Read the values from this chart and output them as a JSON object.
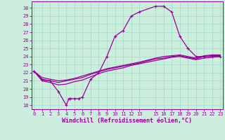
{
  "xlabel": "Windchill (Refroidissement éolien,°C)",
  "background_color": "#cceedd",
  "grid_color": "#aaddcc",
  "line_color": "#990099",
  "x_ticks": [
    0,
    1,
    2,
    3,
    4,
    5,
    6,
    7,
    8,
    9,
    10,
    11,
    12,
    13,
    15,
    16,
    17,
    18,
    19,
    20,
    21,
    22,
    23
  ],
  "y_ticks": [
    18,
    19,
    20,
    21,
    22,
    23,
    24,
    25,
    26,
    27,
    28,
    29,
    30
  ],
  "xlim": [
    -0.3,
    23.3
  ],
  "ylim": [
    17.5,
    30.8
  ],
  "line1_x": [
    0,
    1,
    2,
    3,
    4,
    4.3,
    4.5,
    5,
    5.5,
    6,
    7,
    8,
    9,
    10,
    11,
    12,
    13,
    15,
    16,
    17,
    18,
    19,
    20,
    21,
    22,
    23
  ],
  "line1_y": [
    22.2,
    21.1,
    21.0,
    19.7,
    18.0,
    18.8,
    18.8,
    18.8,
    18.8,
    19.0,
    21.2,
    22.0,
    24.0,
    26.5,
    27.2,
    29.0,
    29.5,
    30.2,
    30.2,
    29.5,
    26.5,
    25.0,
    24.0,
    24.0,
    24.0,
    24.0
  ],
  "line2_x": [
    0,
    1,
    2,
    3,
    4,
    5,
    6,
    7,
    8,
    9,
    10,
    11,
    12,
    13,
    15,
    16,
    17,
    18,
    19,
    20,
    21,
    22,
    23
  ],
  "line2_y": [
    22.2,
    21.2,
    21.0,
    20.8,
    21.0,
    21.2,
    21.4,
    21.8,
    22.1,
    22.4,
    22.6,
    22.8,
    23.0,
    23.2,
    23.7,
    23.8,
    24.0,
    24.1,
    23.9,
    23.7,
    24.0,
    24.1,
    24.1
  ],
  "line3_x": [
    0,
    1,
    2,
    3,
    4,
    5,
    6,
    7,
    8,
    9,
    10,
    11,
    12,
    13,
    15,
    16,
    17,
    18,
    19,
    20,
    21,
    22,
    23
  ],
  "line3_y": [
    22.2,
    21.4,
    21.2,
    21.0,
    21.1,
    21.3,
    21.6,
    21.9,
    22.2,
    22.5,
    22.7,
    22.9,
    23.1,
    23.3,
    23.8,
    24.0,
    24.1,
    24.2,
    24.0,
    23.8,
    24.1,
    24.2,
    24.2
  ],
  "line4_x": [
    0,
    1,
    2,
    3,
    4,
    5,
    6,
    7,
    8,
    9,
    10,
    11,
    12,
    13,
    15,
    16,
    17,
    18,
    19,
    20,
    21,
    22,
    23
  ],
  "line4_y": [
    22.2,
    21.0,
    20.8,
    20.5,
    20.6,
    20.9,
    21.1,
    21.5,
    21.9,
    22.2,
    22.4,
    22.6,
    22.9,
    23.1,
    23.5,
    23.7,
    23.9,
    24.0,
    23.8,
    23.6,
    23.8,
    23.9,
    24.0
  ],
  "marker_x": [
    0,
    1,
    2,
    3,
    4,
    5,
    6,
    7,
    8,
    9,
    10,
    11,
    12,
    13,
    15,
    16,
    17,
    18,
    19,
    20,
    21,
    22,
    23
  ],
  "marker_y": [
    22.2,
    21.1,
    21.0,
    19.7,
    18.0,
    18.8,
    18.8,
    21.2,
    22.0,
    24.0,
    26.5,
    27.2,
    29.0,
    29.5,
    30.2,
    30.2,
    29.5,
    26.5,
    25.0,
    24.0,
    24.0,
    24.0,
    24.0
  ]
}
